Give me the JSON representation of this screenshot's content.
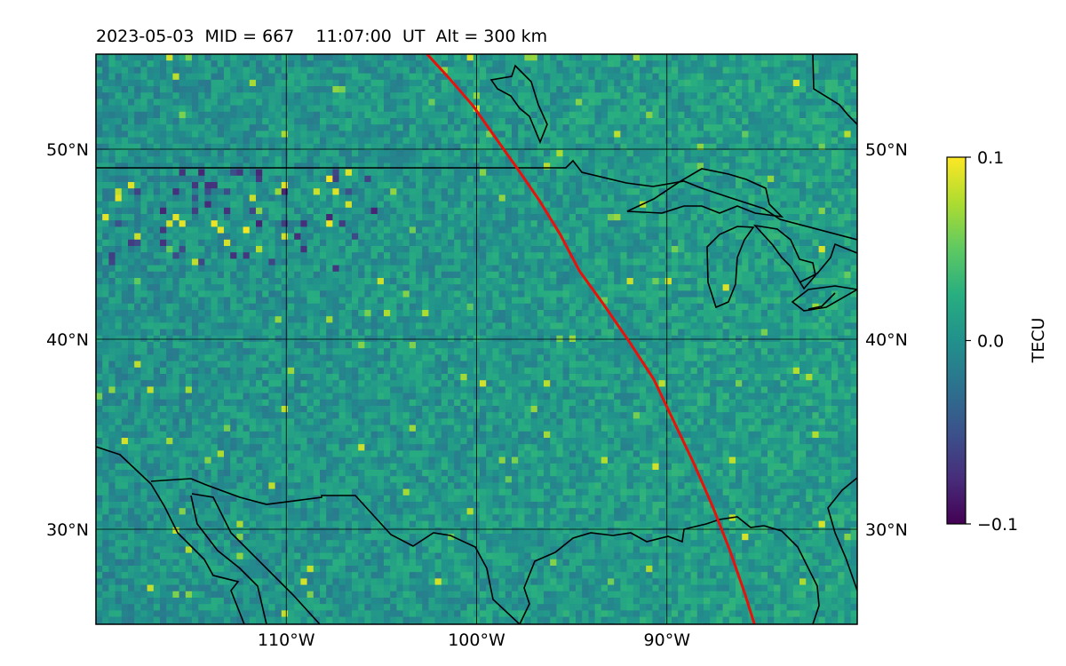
{
  "title": "2023-05-03  MID = 667    11:07:00  UT  Alt = 300 km",
  "map": {
    "lon_range": [
      -120,
      -80
    ],
    "lat_range": [
      25,
      55
    ],
    "lon_ticks": [
      {
        "value": -110,
        "label": "110°W"
      },
      {
        "value": -100,
        "label": "100°W"
      },
      {
        "value": -90,
        "label": "90°W"
      }
    ],
    "lat_ticks": [
      {
        "value": 50,
        "label": "50°N"
      },
      {
        "value": 40,
        "label": "40°N"
      },
      {
        "value": 30,
        "label": "30°N"
      }
    ],
    "grid": true,
    "colors": {
      "track": "#e8120c",
      "coast": "#000000",
      "grid": "#000000",
      "base_tile": "#2a7f8e"
    },
    "track_path": [
      [
        -102.6,
        55
      ],
      [
        -101.5,
        53.8
      ],
      [
        -100.2,
        52.3
      ],
      [
        -99.0,
        50.6
      ],
      [
        -97.8,
        48.9
      ],
      [
        -96.7,
        47.3
      ],
      [
        -95.6,
        45.5
      ],
      [
        -94.6,
        43.6
      ],
      [
        -93.3,
        41.8
      ],
      [
        -92.0,
        39.9
      ],
      [
        -90.7,
        37.9
      ],
      [
        -89.6,
        35.6
      ],
      [
        -88.6,
        33.5
      ],
      [
        -87.6,
        31.2
      ],
      [
        -86.7,
        28.9
      ],
      [
        -85.9,
        26.6
      ],
      [
        -85.4,
        25.0
      ]
    ]
  },
  "colorbar": {
    "label": "TECU",
    "min": -0.1,
    "max": 0.1,
    "ticks": [
      {
        "value": 0.1,
        "label": "0.1"
      },
      {
        "value": 0.0,
        "label": "0.0"
      },
      {
        "value": -0.1,
        "label": "−0.1"
      }
    ]
  }
}
